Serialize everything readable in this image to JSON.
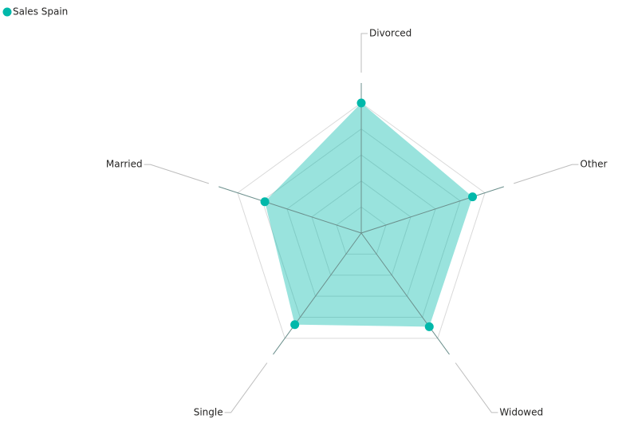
{
  "chart_data": {
    "type": "radar",
    "categories": [
      "Divorced",
      "Other",
      "Widowed",
      "Single",
      "Married"
    ],
    "series": [
      {
        "name": "Sales Spain",
        "color": "#01b8aa",
        "values": [
          100,
          90,
          89,
          87,
          78
        ]
      }
    ],
    "ylim": [
      0,
      100
    ],
    "yticks": [
      20,
      40,
      60,
      80,
      100
    ],
    "grid": true,
    "legend": "top-left"
  }
}
